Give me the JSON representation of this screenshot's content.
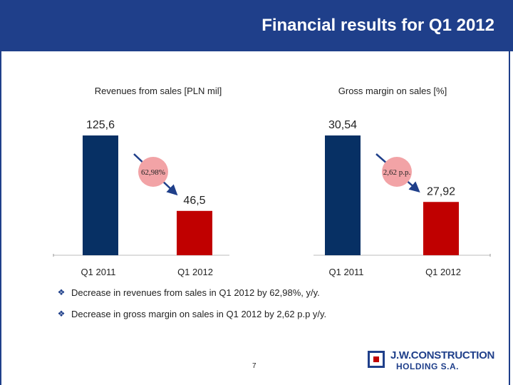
{
  "header": {
    "title": "Financial results for Q1 2012"
  },
  "colors": {
    "header_bg": "#1f3f8a",
    "bar_2011": "#073064",
    "bar_2012": "#c00000",
    "change_badge": "#f2a3a6"
  },
  "chart_data": [
    {
      "type": "bar",
      "title": "Revenues from sales [PLN mil]",
      "categories": [
        "Q1 2011",
        "Q1 2012"
      ],
      "values": [
        125.6,
        46.5
      ],
      "value_labels": [
        "125,6",
        "46,5"
      ],
      "change_label": "62,98%",
      "ylim": [
        0,
        125.6
      ]
    },
    {
      "type": "bar",
      "title": "Gross margin on sales [%]",
      "categories": [
        "Q1 2011",
        "Q1 2012"
      ],
      "values": [
        30.54,
        27.92
      ],
      "value_labels": [
        "30,54",
        "27,92"
      ],
      "change_label": "2,62 p.p.",
      "axis_break": true
    }
  ],
  "bullets": [
    "Decrease in revenues from sales in Q1 2012 by 62,98%, y/y.",
    "Decrease in gross margin on sales in Q1 2012 by 2,62 p.p y/y."
  ],
  "footer": {
    "page_number": "7",
    "logo_line1": "J.W.CONSTRUCTION",
    "logo_line2": "HOLDING S.A."
  }
}
